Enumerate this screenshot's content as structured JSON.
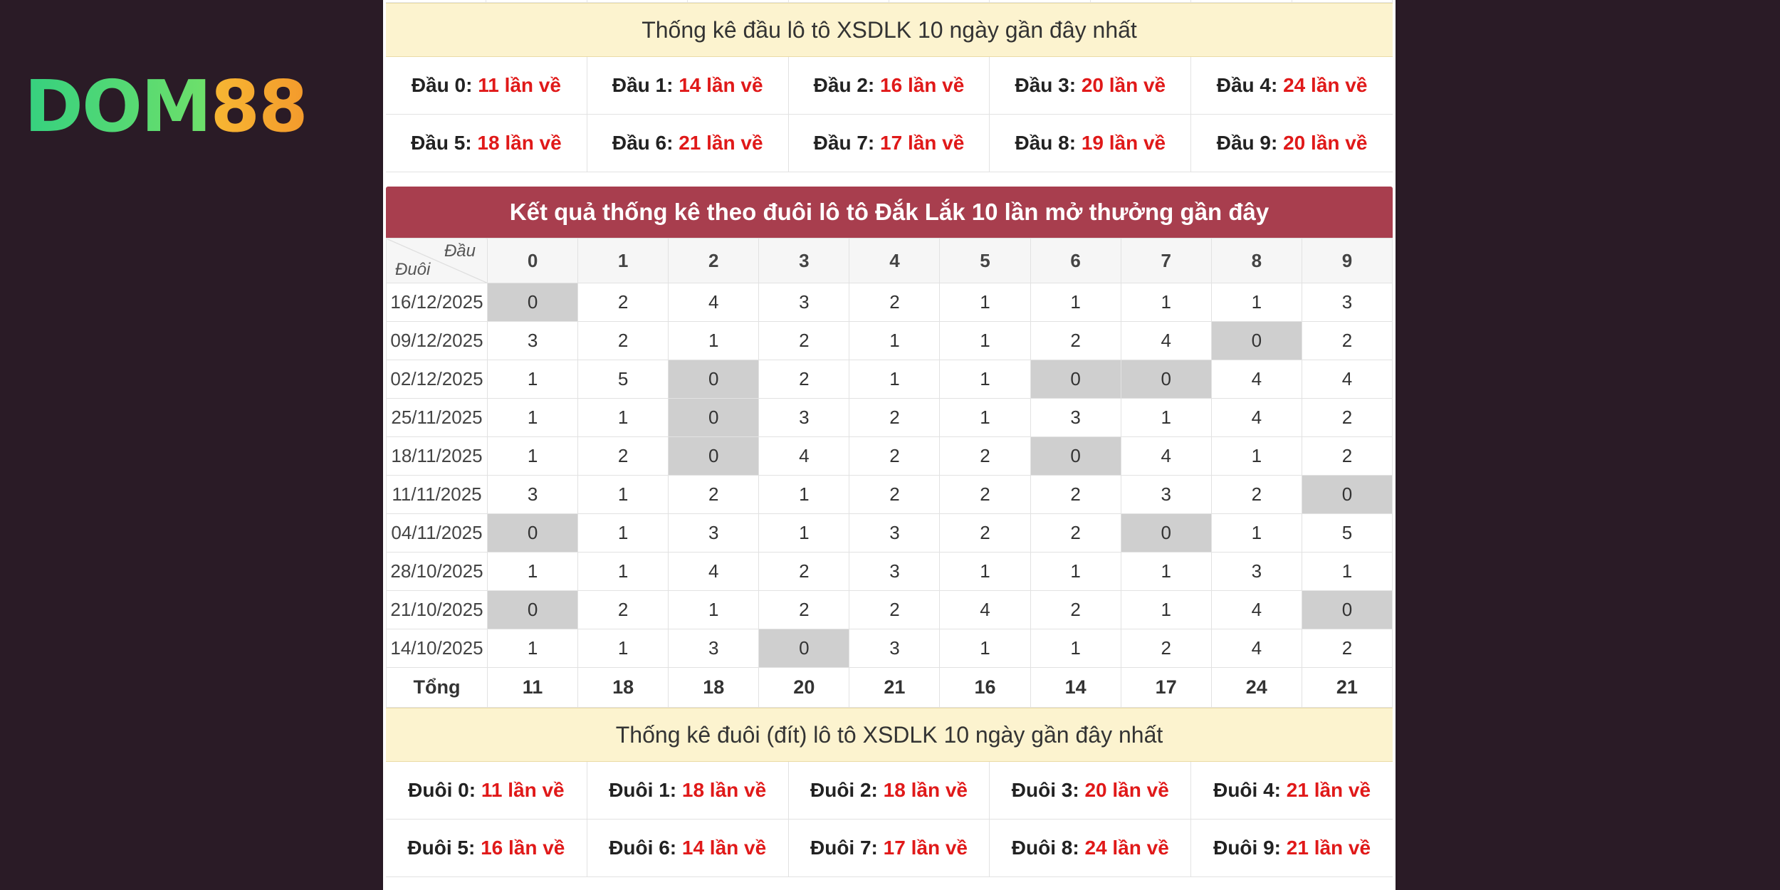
{
  "logo": {
    "part1": "DOM",
    "part2": "88"
  },
  "colors": {
    "background": "#2a1b26",
    "header_red": "#a83e4e",
    "highlight_text": "#e01919",
    "yellow_band": "#fcf3cf",
    "zero_cell": "#cfcfcf"
  },
  "head_section": {
    "title": "Thống kê đầu lô tô XSDLK 10 ngày gần đây nhất",
    "items": [
      {
        "label": "Đầu 0:",
        "value": "11 lần về"
      },
      {
        "label": "Đầu 1:",
        "value": "14 lần về"
      },
      {
        "label": "Đầu 2:",
        "value": "16 lần về"
      },
      {
        "label": "Đầu 3:",
        "value": "20 lần về"
      },
      {
        "label": "Đầu 4:",
        "value": "24 lần về"
      },
      {
        "label": "Đầu 5:",
        "value": "18 lần về"
      },
      {
        "label": "Đầu 6:",
        "value": "21 lần về"
      },
      {
        "label": "Đầu 7:",
        "value": "17 lần về"
      },
      {
        "label": "Đầu 8:",
        "value": "19 lần về"
      },
      {
        "label": "Đầu 9:",
        "value": "20 lần về"
      }
    ]
  },
  "result_table": {
    "title": "Kết quả thống kê theo đuôi lô tô Đắk Lắk 10 lần mở thưởng gần đây",
    "corner_top": "Đầu",
    "corner_bottom": "Đuôi",
    "columns": [
      "0",
      "1",
      "2",
      "3",
      "4",
      "5",
      "6",
      "7",
      "8",
      "9"
    ],
    "rows": [
      {
        "date": "16/12/2025",
        "values": [
          0,
          2,
          4,
          3,
          2,
          1,
          1,
          1,
          1,
          3
        ]
      },
      {
        "date": "09/12/2025",
        "values": [
          3,
          2,
          1,
          2,
          1,
          1,
          2,
          4,
          0,
          2
        ]
      },
      {
        "date": "02/12/2025",
        "values": [
          1,
          5,
          0,
          2,
          1,
          1,
          0,
          0,
          4,
          4
        ]
      },
      {
        "date": "25/11/2025",
        "values": [
          1,
          1,
          0,
          3,
          2,
          1,
          3,
          1,
          4,
          2
        ]
      },
      {
        "date": "18/11/2025",
        "values": [
          1,
          2,
          0,
          4,
          2,
          2,
          0,
          4,
          1,
          2
        ]
      },
      {
        "date": "11/11/2025",
        "values": [
          3,
          1,
          2,
          1,
          2,
          2,
          2,
          3,
          2,
          0
        ]
      },
      {
        "date": "04/11/2025",
        "values": [
          0,
          1,
          3,
          1,
          3,
          2,
          2,
          0,
          1,
          5
        ]
      },
      {
        "date": "28/10/2025",
        "values": [
          1,
          1,
          4,
          2,
          3,
          1,
          1,
          1,
          3,
          1
        ]
      },
      {
        "date": "21/10/2025",
        "values": [
          0,
          2,
          1,
          2,
          2,
          4,
          2,
          1,
          4,
          0
        ]
      },
      {
        "date": "14/10/2025",
        "values": [
          1,
          1,
          3,
          0,
          3,
          1,
          1,
          2,
          4,
          2
        ]
      }
    ],
    "total_label": "Tổng",
    "totals": [
      11,
      18,
      18,
      20,
      21,
      16,
      14,
      17,
      24,
      21
    ]
  },
  "tail_section": {
    "title": "Thống kê đuôi (đít) lô tô XSDLK 10 ngày gần đây nhất",
    "items": [
      {
        "label": "Đuôi 0:",
        "value": "11 lần về"
      },
      {
        "label": "Đuôi 1:",
        "value": "18 lần về"
      },
      {
        "label": "Đuôi 2:",
        "value": "18 lần về"
      },
      {
        "label": "Đuôi 3:",
        "value": "20 lần về"
      },
      {
        "label": "Đuôi 4:",
        "value": "21 lần về"
      },
      {
        "label": "Đuôi 5:",
        "value": "16 lần về"
      },
      {
        "label": "Đuôi 6:",
        "value": "14 lần về"
      },
      {
        "label": "Đuôi 7:",
        "value": "17 lần về"
      },
      {
        "label": "Đuôi 8:",
        "value": "24 lần về"
      },
      {
        "label": "Đuôi 9:",
        "value": "21 lần về"
      }
    ]
  }
}
